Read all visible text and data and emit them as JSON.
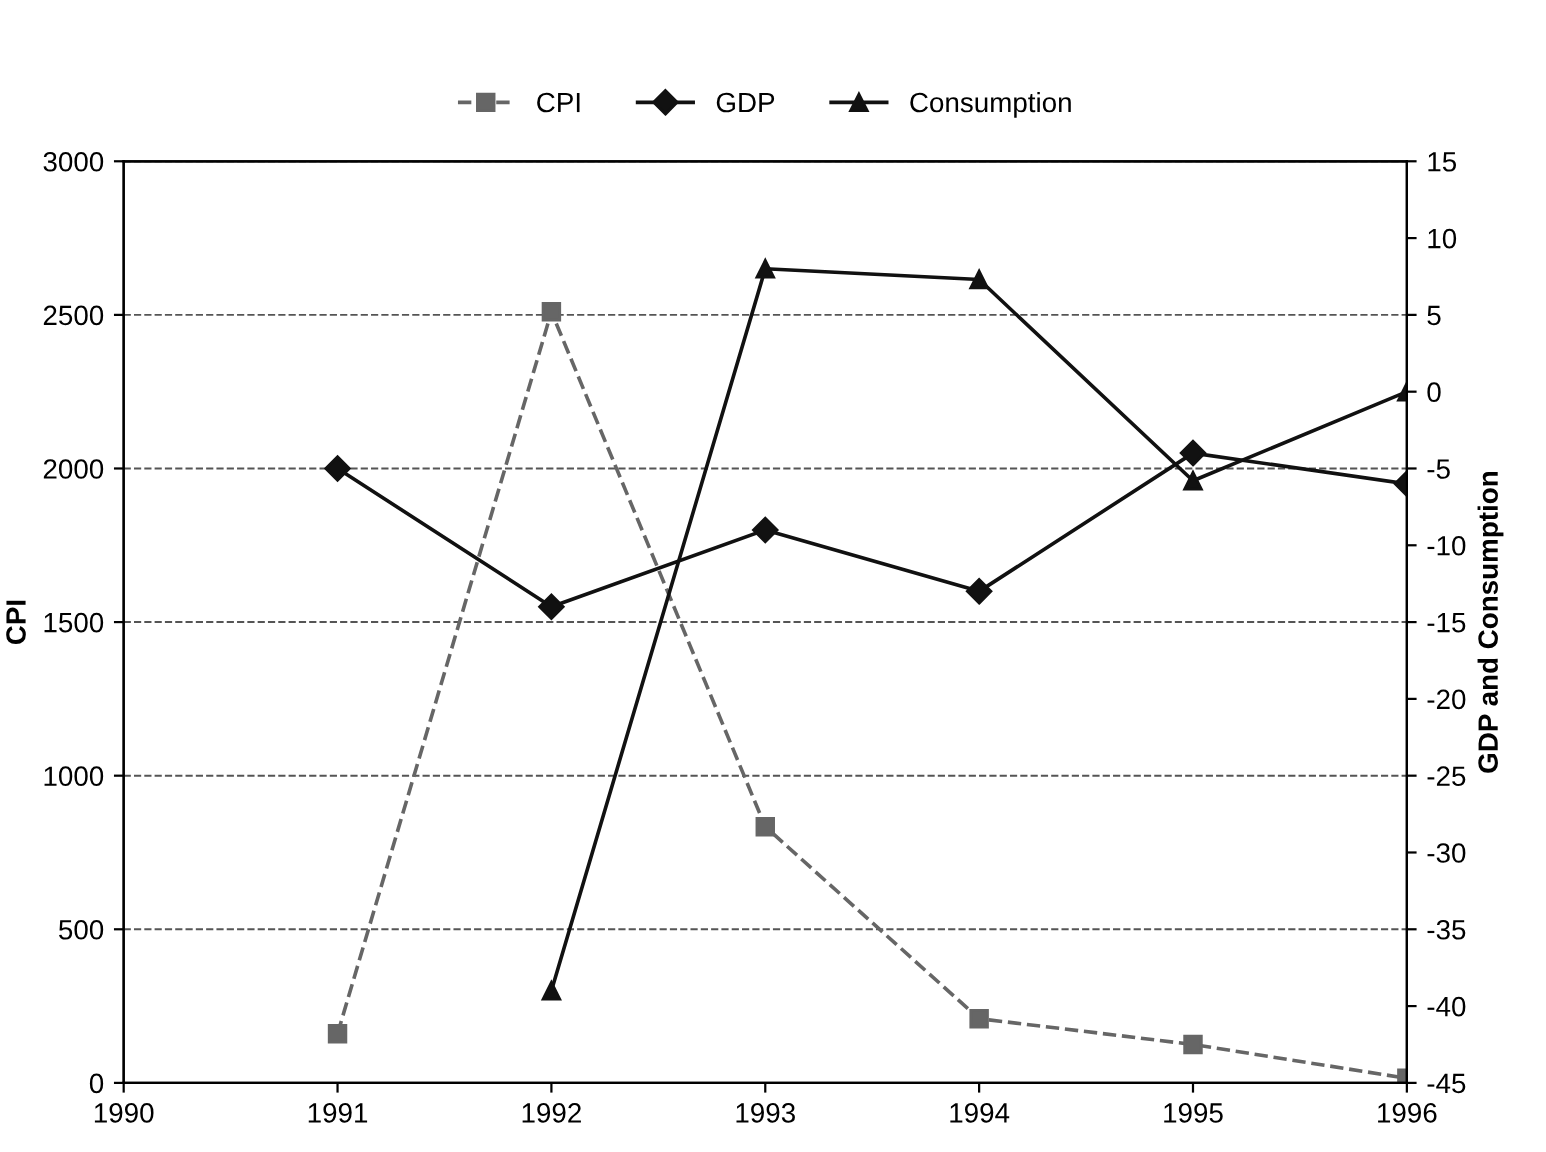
{
  "chart_data": {
    "type": "line",
    "ylabel": "CPI",
    "y2label": "GDP and Consumption",
    "x": [
      1991,
      1992,
      1993,
      1994,
      1995,
      1996
    ],
    "xlim": [
      1990,
      1996
    ],
    "xticks": [
      1990,
      1991,
      1992,
      1993,
      1994,
      1995,
      1996
    ],
    "ylim": [
      0,
      3000
    ],
    "yticks": [
      0,
      500,
      1000,
      1500,
      2000,
      2500,
      3000
    ],
    "y2lim": [
      -45,
      15
    ],
    "y2ticks": [
      -45,
      -40,
      -35,
      -30,
      -25,
      -20,
      -15,
      -10,
      -5,
      0,
      5,
      10,
      15
    ],
    "grid": "y",
    "legend": "top",
    "series": [
      {
        "name": "CPI",
        "color": "#666666",
        "marker": "square",
        "line_style": "dashed",
        "values": [
          160,
          2510,
          834,
          209,
          125,
          15
        ]
      },
      {
        "name": "GDP",
        "color": "#111111",
        "marker": "diamond",
        "line_style": "solid",
        "axis": "y2",
        "values": [
          -5,
          -14,
          -9,
          -13,
          -4,
          -6
        ]
      },
      {
        "name": "Consumption",
        "color": "#111111",
        "marker": "triangle",
        "line_style": "solid",
        "axis": "y2",
        "values": [
          null,
          -39,
          8,
          7.3,
          -5.8,
          0
        ]
      }
    ]
  }
}
